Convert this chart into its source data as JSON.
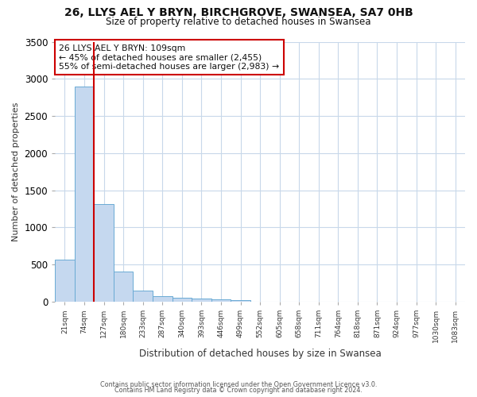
{
  "title_line1": "26, LLYS AEL Y BRYN, BIRCHGROVE, SWANSEA, SA7 0HB",
  "title_line2": "Size of property relative to detached houses in Swansea",
  "xlabel": "Distribution of detached houses by size in Swansea",
  "ylabel": "Number of detached properties",
  "bar_labels": [
    "21sqm",
    "74sqm",
    "127sqm",
    "180sqm",
    "233sqm",
    "287sqm",
    "340sqm",
    "393sqm",
    "446sqm",
    "499sqm",
    "552sqm",
    "605sqm",
    "658sqm",
    "711sqm",
    "764sqm",
    "818sqm",
    "871sqm",
    "924sqm",
    "977sqm",
    "1030sqm",
    "1083sqm"
  ],
  "bar_values": [
    570,
    2900,
    1310,
    410,
    155,
    80,
    50,
    40,
    30,
    25,
    0,
    0,
    0,
    0,
    0,
    0,
    0,
    0,
    0,
    0,
    0
  ],
  "bar_color": "#c5d8ef",
  "bar_edgecolor": "#6aaad4",
  "ylim_min": 0,
  "ylim_max": 3500,
  "yticks": [
    0,
    500,
    1000,
    1500,
    2000,
    2500,
    3000,
    3500
  ],
  "vline_x": 1.5,
  "vline_color": "#cc0000",
  "annotation_title": "26 LLYS AEL Y BRYN: 109sqm",
  "annotation_line1": "← 45% of detached houses are smaller (2,455)",
  "annotation_line2": "55% of semi-detached houses are larger (2,983) →",
  "annotation_box_edgecolor": "#cc0000",
  "footer_line1": "Contains HM Land Registry data © Crown copyright and database right 2024.",
  "footer_line2": "Contains public sector information licensed under the Open Government Licence v3.0.",
  "background_color": "#ffffff",
  "grid_color": "#c8d8ea"
}
